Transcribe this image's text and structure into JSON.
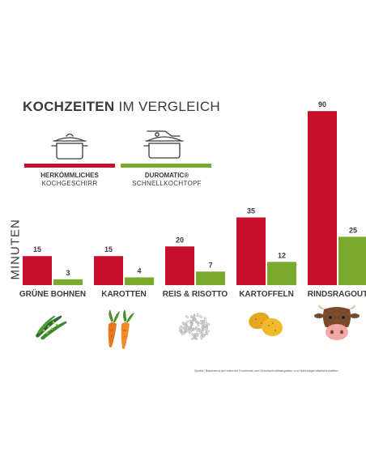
{
  "header": {
    "title_bold": "KOCHZEITEN",
    "title_light": "IM VERGLEICH"
  },
  "legend": {
    "conventional": {
      "name_bold": "HERKÖMMLICHES",
      "name_light": "KOCHGESCHIRR",
      "color": "#c8102e",
      "icon": "pot-icon"
    },
    "duromatic": {
      "name_bold": "DUROMATIC®",
      "name_light": "SCHNELLKOCHTOPF",
      "color": "#7aaa2e",
      "icon": "pressure-cooker-icon"
    }
  },
  "chart_data": {
    "type": "bar",
    "ylabel": "MINUTEN",
    "categories": [
      "GRÜNE BOHNEN",
      "KAROTTEN",
      "REIS & RISOTTO",
      "KARTOFFELN",
      "RINDSRAGOUT"
    ],
    "series": [
      {
        "name": "HERKÖMMLICHES KOCHGESCHIRR",
        "color": "#c8102e",
        "values": [
          15,
          15,
          20,
          35,
          90
        ]
      },
      {
        "name": "DUROMATIC® SCHNELLKOCHTOPF",
        "color": "#7aaa2e",
        "values": [
          3,
          4,
          7,
          12,
          25
        ]
      }
    ],
    "grid": false,
    "legend_position": "top-left"
  },
  "icons": [
    "green-beans-icon",
    "carrots-icon",
    "rice-icon",
    "potatoes-icon",
    "cow-icon"
  ],
  "footer": {
    "source": "Quelle: Basierend auf internen Kochtests und Durchschnittsangaben von Nahrungsmittelkennzahlen"
  }
}
